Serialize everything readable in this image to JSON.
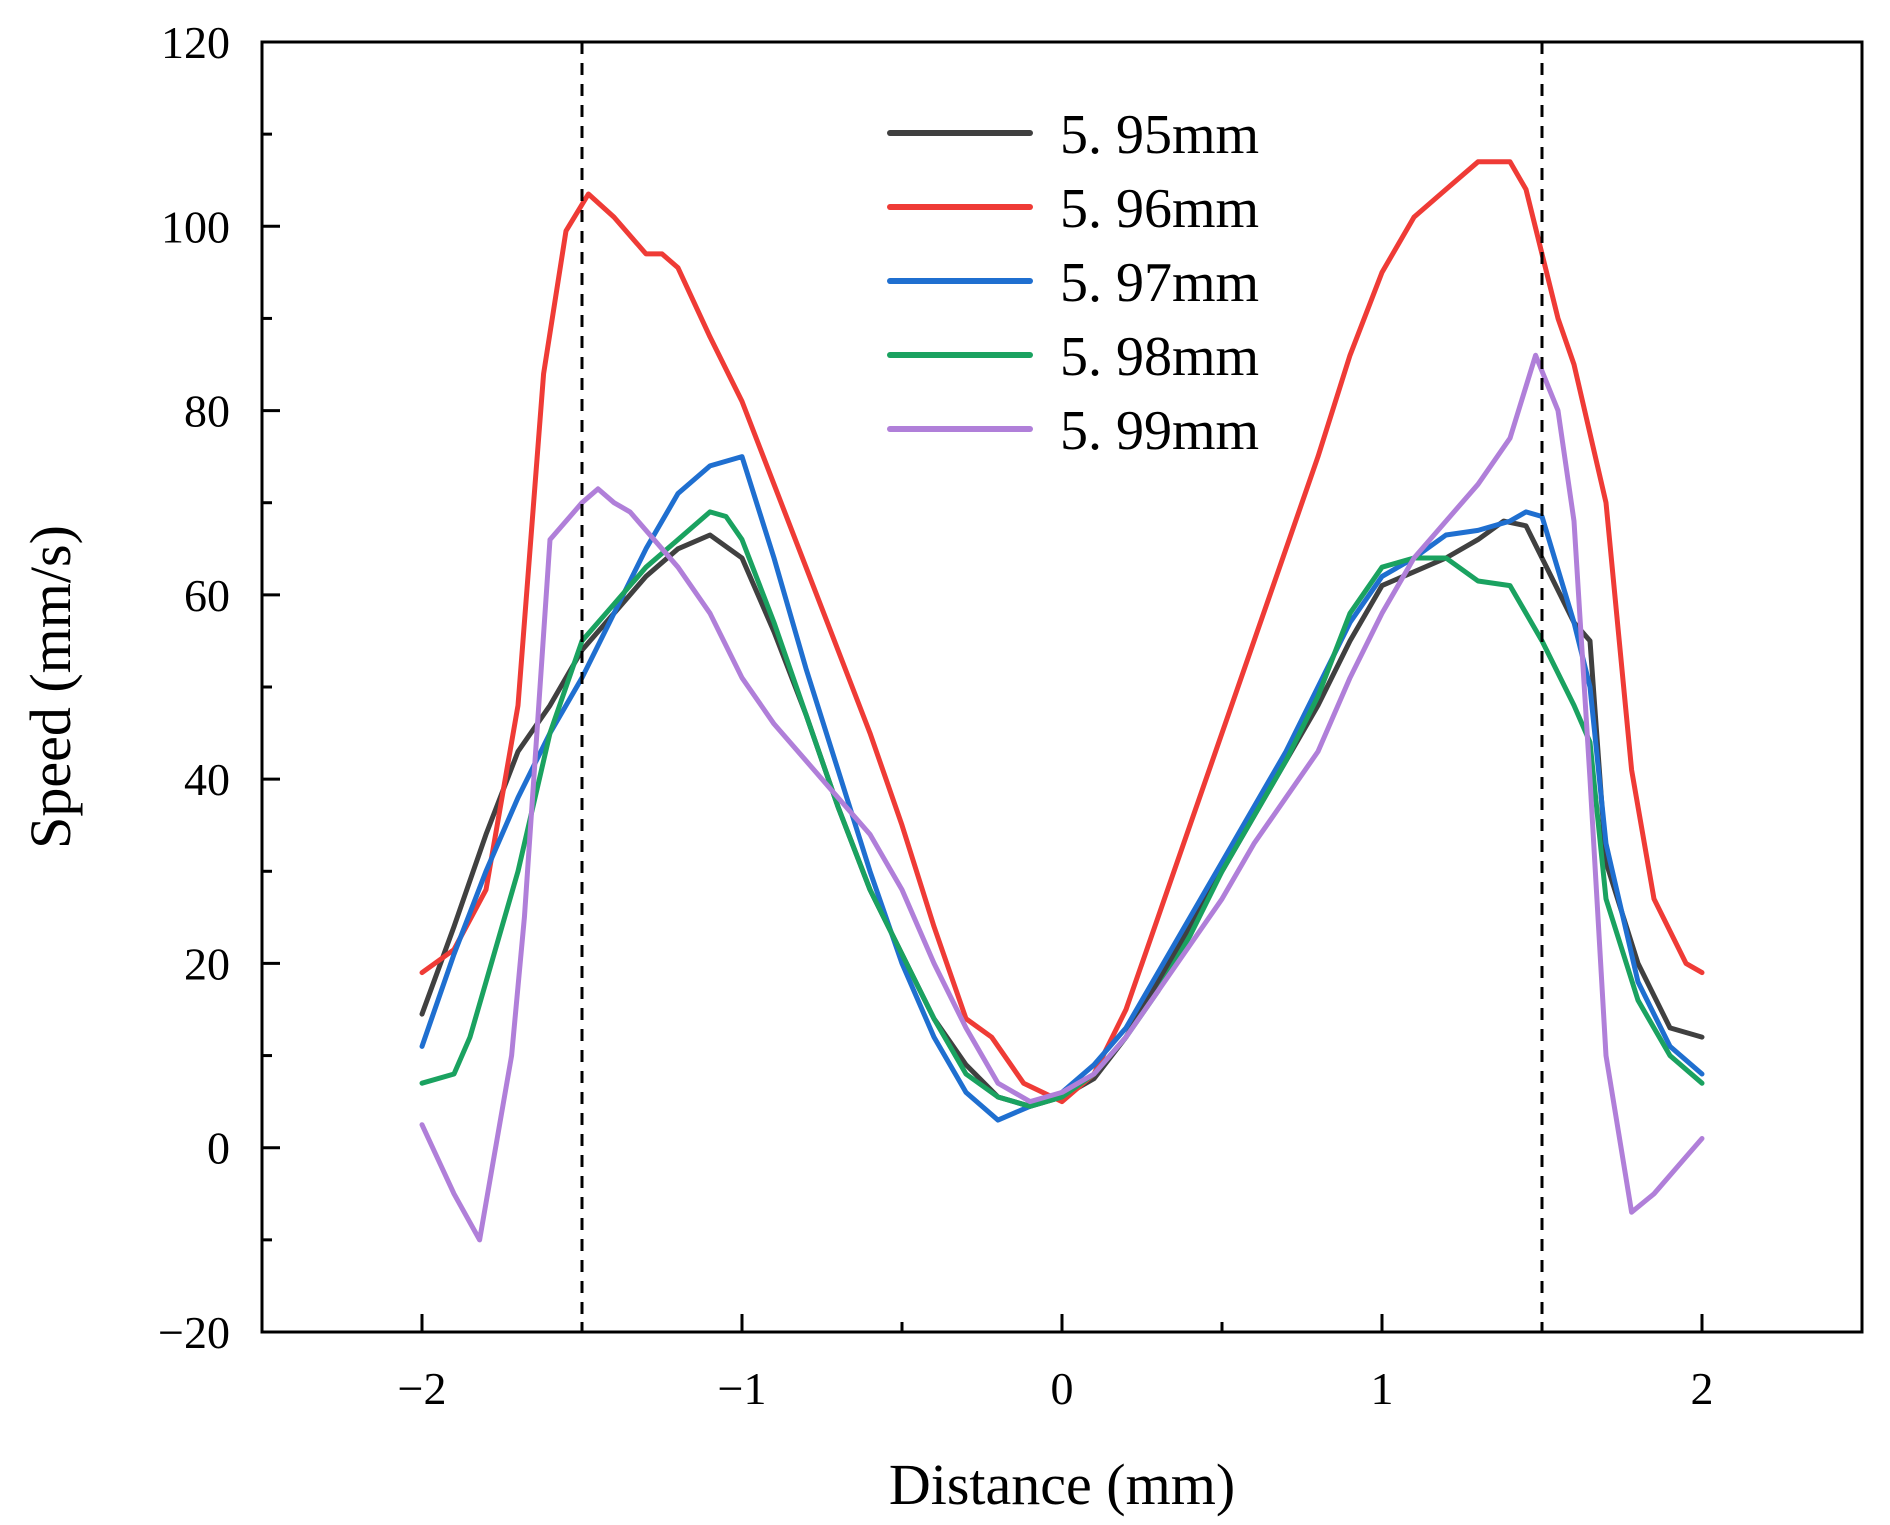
{
  "chart_data": {
    "type": "line",
    "title": "",
    "xlabel": "Distance (mm)",
    "ylabel": "Speed (mm/s)",
    "xlim": [
      -2.5,
      2.5
    ],
    "ylim": [
      -20,
      120
    ],
    "xticks": [
      -2,
      -1,
      0,
      1,
      2
    ],
    "xtick_labels": [
      "−2",
      "−1",
      "0",
      "1",
      "2"
    ],
    "yticks": [
      -20,
      0,
      20,
      40,
      60,
      80,
      100,
      120
    ],
    "ytick_labels": [
      "−20",
      "0",
      "20",
      "40",
      "60",
      "80",
      "100",
      "120"
    ],
    "grid": false,
    "legend_position": "top-center",
    "reference_lines": [
      {
        "orientation": "vertical",
        "x": -1.5,
        "style": "dashed",
        "color": "#000000"
      },
      {
        "orientation": "vertical",
        "x": 1.5,
        "style": "dashed",
        "color": "#000000"
      }
    ],
    "series": [
      {
        "name": "5.95mm",
        "legend_label": "5. 95mm",
        "color": "#404040",
        "x": [
          -2.0,
          -1.9,
          -1.8,
          -1.7,
          -1.6,
          -1.5,
          -1.4,
          -1.3,
          -1.2,
          -1.1,
          -1.0,
          -0.9,
          -0.8,
          -0.7,
          -0.6,
          -0.5,
          -0.4,
          -0.3,
          -0.2,
          -0.1,
          0.0,
          0.1,
          0.2,
          0.3,
          0.4,
          0.5,
          0.6,
          0.7,
          0.8,
          0.9,
          1.0,
          1.1,
          1.2,
          1.3,
          1.38,
          1.45,
          1.5,
          1.6,
          1.65,
          1.7,
          1.8,
          1.9,
          2.0
        ],
        "y": [
          14.5,
          24,
          34,
          43,
          48,
          54,
          58,
          62,
          65,
          66.5,
          64,
          56,
          47,
          37,
          28,
          21,
          14,
          9,
          5.5,
          4.5,
          5.5,
          7.5,
          12,
          18,
          24,
          30,
          36,
          42,
          48,
          55,
          61,
          62.5,
          64,
          66,
          68,
          67.5,
          64,
          57,
          55,
          31,
          20,
          13,
          12
        ]
      },
      {
        "name": "5.96mm",
        "legend_label": "5. 96mm",
        "color": "#ef3b36",
        "x": [
          -2.0,
          -1.9,
          -1.8,
          -1.7,
          -1.62,
          -1.55,
          -1.48,
          -1.4,
          -1.3,
          -1.25,
          -1.2,
          -1.1,
          -1.0,
          -0.9,
          -0.8,
          -0.7,
          -0.6,
          -0.5,
          -0.4,
          -0.3,
          -0.22,
          -0.12,
          0.0,
          0.1,
          0.2,
          0.3,
          0.4,
          0.5,
          0.6,
          0.7,
          0.8,
          0.9,
          1.0,
          1.1,
          1.2,
          1.3,
          1.4,
          1.45,
          1.5,
          1.55,
          1.6,
          1.7,
          1.78,
          1.85,
          1.95,
          2.0
        ],
        "y": [
          19,
          21.5,
          28,
          48,
          84,
          99.5,
          103.5,
          101,
          97,
          97,
          95.5,
          88,
          81,
          72,
          63,
          54,
          45,
          35,
          24,
          14,
          12,
          7,
          5,
          8,
          15,
          25,
          35,
          45,
          55,
          65,
          75,
          86,
          95,
          101,
          104,
          107,
          107,
          104,
          97,
          90,
          85,
          70,
          41,
          27,
          20,
          19
        ]
      },
      {
        "name": "5.97mm",
        "legend_label": "5. 97mm",
        "color": "#1f6fd0",
        "x": [
          -2.0,
          -1.9,
          -1.8,
          -1.7,
          -1.6,
          -1.5,
          -1.4,
          -1.3,
          -1.2,
          -1.1,
          -1.0,
          -0.9,
          -0.8,
          -0.7,
          -0.6,
          -0.5,
          -0.4,
          -0.3,
          -0.2,
          -0.1,
          0.0,
          0.1,
          0.2,
          0.3,
          0.4,
          0.5,
          0.6,
          0.7,
          0.8,
          0.9,
          1.0,
          1.1,
          1.2,
          1.3,
          1.4,
          1.45,
          1.5,
          1.6,
          1.65,
          1.7,
          1.8,
          1.9,
          2.0
        ],
        "y": [
          11,
          21,
          30,
          38,
          45,
          51,
          58,
          65,
          71,
          74,
          75,
          64,
          52,
          41,
          30,
          20,
          12,
          6,
          3,
          4.5,
          6,
          9,
          13,
          19,
          25,
          31,
          37,
          43,
          50,
          57,
          62,
          64,
          66.5,
          67,
          68,
          69,
          68.5,
          57,
          50,
          33,
          18,
          11,
          8
        ]
      },
      {
        "name": "5.98mm",
        "legend_label": "5. 98mm",
        "color": "#1aa260",
        "x": [
          -2.0,
          -1.9,
          -1.85,
          -1.8,
          -1.7,
          -1.6,
          -1.5,
          -1.45,
          -1.4,
          -1.3,
          -1.2,
          -1.1,
          -1.05,
          -1.0,
          -0.9,
          -0.8,
          -0.7,
          -0.6,
          -0.5,
          -0.4,
          -0.3,
          -0.2,
          -0.1,
          0.0,
          0.1,
          0.2,
          0.3,
          0.4,
          0.5,
          0.6,
          0.7,
          0.8,
          0.9,
          1.0,
          1.1,
          1.2,
          1.3,
          1.4,
          1.5,
          1.6,
          1.65,
          1.7,
          1.8,
          1.9,
          2.0
        ],
        "y": [
          7,
          8,
          12,
          18,
          30,
          45,
          55,
          57,
          59,
          63,
          66,
          69,
          68.5,
          66,
          57,
          47,
          37,
          28,
          21,
          14,
          8,
          5.5,
          4.5,
          5.5,
          8,
          12,
          17,
          23,
          30,
          36,
          42,
          49,
          58,
          63,
          64,
          64,
          61.5,
          61,
          55,
          48,
          44,
          27,
          16,
          10,
          7
        ]
      },
      {
        "name": "5.99mm",
        "legend_label": "5. 99mm",
        "color": "#b07fd9",
        "x": [
          -2.0,
          -1.9,
          -1.82,
          -1.78,
          -1.72,
          -1.68,
          -1.6,
          -1.5,
          -1.45,
          -1.4,
          -1.35,
          -1.3,
          -1.2,
          -1.1,
          -1.0,
          -0.9,
          -0.8,
          -0.7,
          -0.6,
          -0.5,
          -0.4,
          -0.3,
          -0.2,
          -0.1,
          0.0,
          0.1,
          0.2,
          0.3,
          0.4,
          0.5,
          0.6,
          0.7,
          0.8,
          0.9,
          1.0,
          1.1,
          1.2,
          1.3,
          1.4,
          1.48,
          1.55,
          1.6,
          1.65,
          1.7,
          1.78,
          1.85,
          1.95,
          2.0
        ],
        "y": [
          2.5,
          -5,
          -10,
          -2,
          10,
          25,
          66,
          70,
          71.5,
          70,
          69,
          67,
          63,
          58,
          51,
          46,
          42,
          38,
          34,
          28,
          20,
          13,
          7,
          5,
          6,
          8,
          12,
          17,
          22,
          27,
          33,
          38,
          43,
          51,
          58,
          64,
          68,
          72,
          77,
          86,
          80,
          68,
          40,
          10,
          -7,
          -5,
          -1,
          1
        ]
      }
    ]
  }
}
